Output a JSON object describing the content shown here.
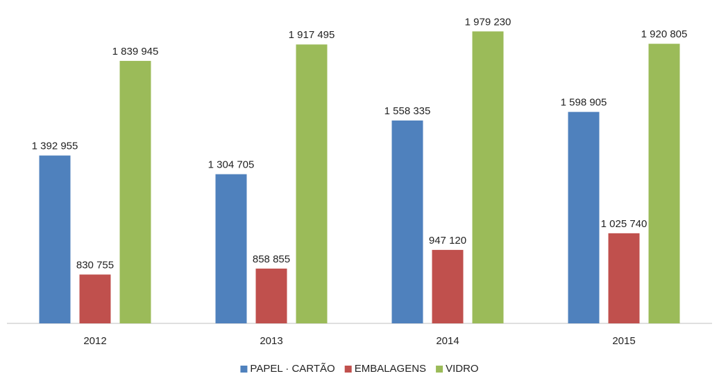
{
  "chart_data": {
    "type": "bar",
    "categories": [
      "2012",
      "2013",
      "2014",
      "2015"
    ],
    "series": [
      {
        "name": "PAPEL · CARTÃO",
        "color": "#4f81bd",
        "values": [
          1392955,
          1304705,
          1558335,
          1598905
        ],
        "value_labels": [
          "1 392 955",
          "1 304 705",
          "1 558 335",
          "1 598 905"
        ]
      },
      {
        "name": "EMBALAGENS",
        "color": "#c0504d",
        "values": [
          830755,
          858855,
          947120,
          1025740
        ],
        "value_labels": [
          "830 755",
          "858 855",
          "947 120",
          "1 025 740"
        ]
      },
      {
        "name": "VIDRO",
        "color": "#9bbb59",
        "values": [
          1839945,
          1917495,
          1979230,
          1920805
        ],
        "value_labels": [
          "1 839 945",
          "1 917 495",
          "1 979 230",
          "1 920 805"
        ]
      }
    ],
    "ylim": [
      600000,
      2000000
    ],
    "legend": "bottom"
  }
}
